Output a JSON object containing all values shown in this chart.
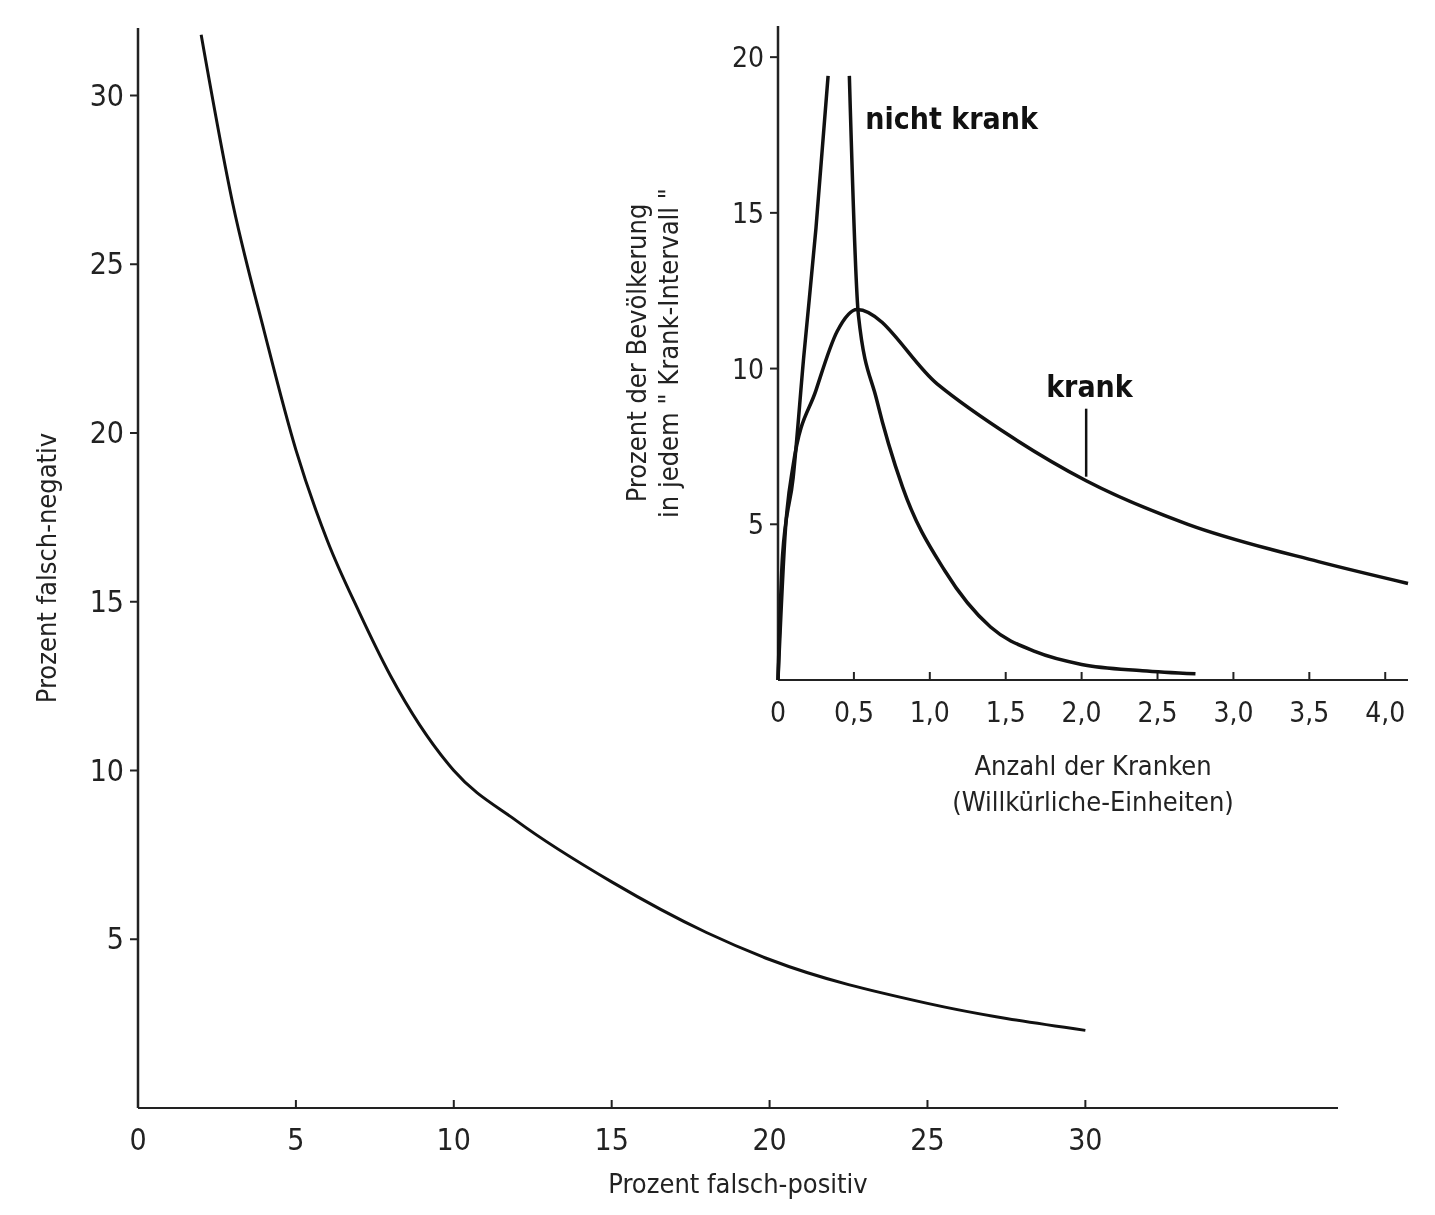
{
  "chart_data": [
    {
      "type": "line",
      "xlabel": "Prozent falsch-positiv",
      "ylabel": "Prozent falsch-negativ",
      "xlim": [
        0,
        38
      ],
      "ylim": [
        0,
        32
      ],
      "xticks": [
        0,
        5,
        10,
        15,
        20,
        25,
        30
      ],
      "yticks": [
        5,
        10,
        15,
        20,
        25,
        30
      ],
      "grid": false,
      "series": [
        {
          "color": "#111111",
          "x": [
            2,
            3,
            4,
            5,
            6,
            7,
            8,
            10,
            12,
            15,
            18,
            20,
            25,
            30
          ],
          "values": [
            31.8,
            26.8,
            23,
            19.5,
            16.8,
            14.7,
            12.8,
            10,
            8.5,
            6.7,
            5.2,
            4.4,
            3.1,
            2.3
          ]
        }
      ]
    },
    {
      "type": "line",
      "xlabel": "Anzahl der Kranken\n(Willkürliche-Einheiten)",
      "ylabel": "Prozent der Bevölkerung\nin jedem \" Krank-Intervall \"",
      "xlim": [
        0,
        4.15
      ],
      "ylim": [
        0,
        21
      ],
      "xticks": [
        0,
        {
          "value": 0.5,
          "label": "0,5"
        },
        {
          "value": 1,
          "label": "1,0"
        },
        {
          "value": 1.5,
          "label": "1,5"
        },
        {
          "value": 2,
          "label": "2,0"
        },
        {
          "value": 2.5,
          "label": "2,5"
        },
        {
          "value": 3,
          "label": "3,0"
        },
        {
          "value": 3.5,
          "label": "3,5"
        },
        {
          "value": 4,
          "label": "4,0"
        }
      ],
      "yticks": [
        5,
        10,
        15,
        20
      ],
      "grid": false,
      "series": [
        {
          "name": "nicht krank",
          "color": "#111111",
          "x": [
            0,
            0.03,
            0.1,
            0.17,
            0.25,
            0.33,
            0.4,
            0.47,
            0.53,
            0.65,
            0.82,
            1.1,
            1.4,
            1.7,
            2.0,
            2.4,
            2.75
          ],
          "values": [
            0,
            4,
            6.5,
            10.4,
            14.5,
            19.4,
            null,
            19.4,
            11.7,
            9,
            6.2,
            3.5,
            1.7,
            0.9,
            0.5,
            0.3,
            0.2
          ]
        },
        {
          "name": "krank",
          "color": "#111111",
          "x": [
            0,
            0.05,
            0.1,
            0.25,
            0.39,
            0.52,
            1.05,
            1.54,
            2.03,
            2.7,
            3.56,
            4.15
          ],
          "values": [
            0,
            4.9,
            6.9,
            9.3,
            11.2,
            11.9,
            9.5,
            7.8,
            6.4,
            5,
            3.8,
            3.1
          ]
        }
      ]
    }
  ]
}
